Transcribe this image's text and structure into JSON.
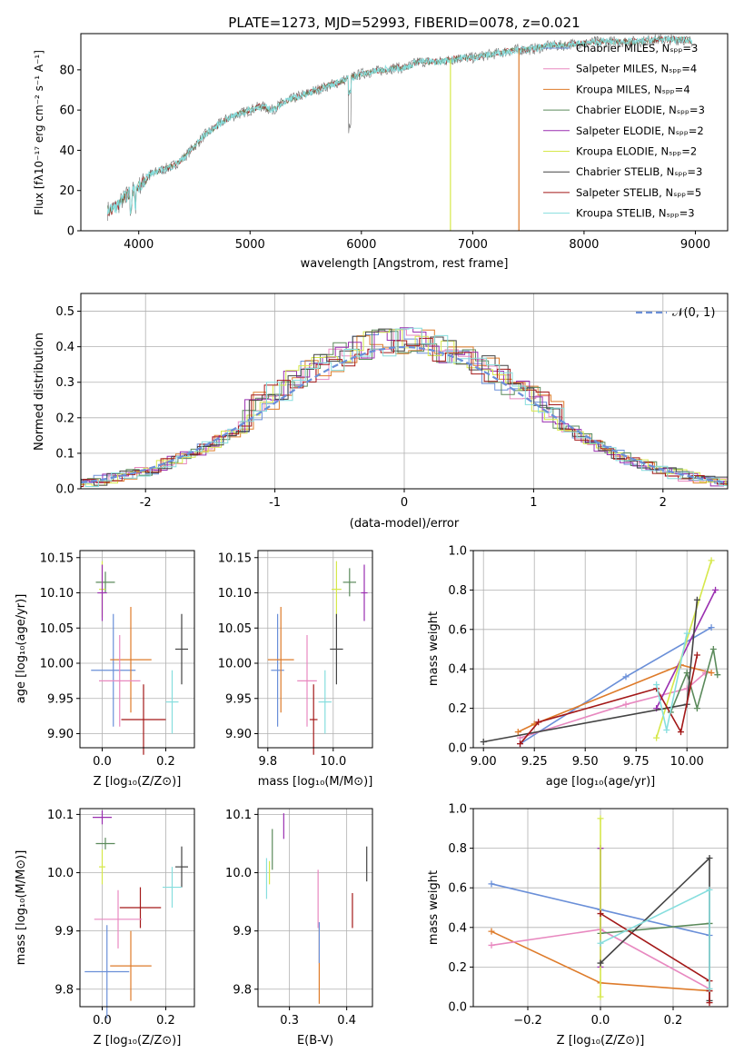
{
  "chart_data": [
    {
      "id": "spectrum",
      "type": "line",
      "title": "PLATE=1273, MJD=52993, FIBERID=0078, z=0.021",
      "xlabel": "wavelength [Angstrom, rest frame]",
      "ylabel": "Flux [fλ10⁻¹⁷ erg cm⁻² s⁻¹ A⁻¹]",
      "xlim": [
        3480,
        9290
      ],
      "ylim": [
        0,
        98
      ],
      "xticks": [
        4000,
        5000,
        6000,
        7000,
        8000,
        9000
      ],
      "yticks": [
        0,
        20,
        40,
        60,
        80
      ],
      "legend_position": "upper-right",
      "legend": [
        {
          "label": "Chabrier MILES, Nₛₚₚ=3",
          "color": "#6a8fd8"
        },
        {
          "label": "Salpeter MILES, Nₛₚₚ=4",
          "color": "#e889c0"
        },
        {
          "label": "Kroupa MILES, Nₛₚₚ=4",
          "color": "#de7b2a"
        },
        {
          "label": "Chabrier ELODIE, Nₛₚₚ=3",
          "color": "#5b8a5b"
        },
        {
          "label": "Salpeter ELODIE, Nₛₚₚ=2",
          "color": "#9a2fb0"
        },
        {
          "label": "Kroupa ELODIE, Nₛₚₚ=2",
          "color": "#d6e84a"
        },
        {
          "label": "Chabrier STELIB, Nₛₚₚ=3",
          "color": "#444444"
        },
        {
          "label": "Salpeter STELIB, Nₛₚₚ=5",
          "color": "#a31818"
        },
        {
          "label": "Kroupa STELIB, Nₛₚₚ=3",
          "color": "#86dede"
        }
      ],
      "spectrum_points": [
        [
          3720,
          10
        ],
        [
          3800,
          12
        ],
        [
          3900,
          18
        ],
        [
          4000,
          22
        ],
        [
          4100,
          28
        ],
        [
          4200,
          30
        ],
        [
          4300,
          32
        ],
        [
          4400,
          36
        ],
        [
          4500,
          42
        ],
        [
          4600,
          48
        ],
        [
          4700,
          52
        ],
        [
          4800,
          56
        ],
        [
          4900,
          58
        ],
        [
          5000,
          60
        ],
        [
          5100,
          62
        ],
        [
          5200,
          60
        ],
        [
          5300,
          64
        ],
        [
          5400,
          66
        ],
        [
          5500,
          68
        ],
        [
          5600,
          70
        ],
        [
          5700,
          72
        ],
        [
          5800,
          74
        ],
        [
          5900,
          76
        ],
        [
          6000,
          78
        ],
        [
          6100,
          79
        ],
        [
          6200,
          80
        ],
        [
          6300,
          81
        ],
        [
          6400,
          81
        ],
        [
          6500,
          84
        ],
        [
          6600,
          84
        ],
        [
          6700,
          84
        ],
        [
          6800,
          85
        ],
        [
          6900,
          86
        ],
        [
          7000,
          86
        ],
        [
          7100,
          87
        ],
        [
          7200,
          88
        ],
        [
          7300,
          89
        ],
        [
          7400,
          90
        ],
        [
          7500,
          90
        ],
        [
          7600,
          91
        ],
        [
          7700,
          92
        ],
        [
          7800,
          92
        ],
        [
          7900,
          93
        ],
        [
          8000,
          93
        ],
        [
          8100,
          94
        ],
        [
          8200,
          94
        ],
        [
          8300,
          94
        ],
        [
          8400,
          94
        ],
        [
          8500,
          94
        ],
        [
          8600,
          95
        ],
        [
          8700,
          95
        ],
        [
          8800,
          95
        ],
        [
          8900,
          95
        ],
        [
          8970,
          94
        ]
      ],
      "dropouts": [
        {
          "x": 6800,
          "color": "#d6e84a"
        },
        {
          "x": 7415,
          "color": "#de7b2a"
        }
      ]
    },
    {
      "id": "residuals",
      "type": "line",
      "xlabel": "(data-model)/error",
      "ylabel": "Normed distribution",
      "xlim": [
        -2.5,
        2.5
      ],
      "ylim": [
        0,
        0.55
      ],
      "xticks": [
        -2,
        -1,
        0,
        1,
        2
      ],
      "yticks": [
        0.0,
        0.1,
        0.2,
        0.3,
        0.4,
        0.5
      ],
      "grid": true,
      "legend_position": "upper-right",
      "legend": [
        {
          "label": "𝒩(0, 1)",
          "color": "#6a8fd8",
          "style": "dashed"
        }
      ],
      "normal": {
        "mean": 0,
        "sigma": 1
      },
      "hist_peak_x": 0.0,
      "hist_peak_y": 0.42
    },
    {
      "id": "age_vs_Z",
      "type": "scatter",
      "xlabel": "Z [log₁₀(Z/Z⊙)]",
      "ylabel": "age  [log₁₀(age/yr)]",
      "xlim": [
        -0.07,
        0.29
      ],
      "ylim": [
        9.88,
        10.16
      ],
      "xticks": [
        0.0,
        0.2
      ],
      "xtick_labels": [
        "0.0",
        "0.2"
      ],
      "yticks": [
        9.9,
        9.95,
        10.0,
        10.05,
        10.1,
        10.15
      ],
      "ytick_labels": [
        "9.90",
        "9.95",
        "10.00",
        "10.05",
        "10.10",
        "10.15"
      ],
      "grid": true,
      "points": [
        {
          "x": 0.01,
          "y": 10.115,
          "xerr": 0.03,
          "yerr": 0.015,
          "color": "#5b8a5b"
        },
        {
          "x": 0.0,
          "y": 10.105,
          "xerr": 0.01,
          "yerr": 0.04,
          "color": "#d6e84a"
        },
        {
          "x": 0.0,
          "y": 10.1,
          "xerr": 0.015,
          "yerr": 0.04,
          "color": "#9a2fb0"
        },
        {
          "x": 0.035,
          "y": 9.99,
          "xerr": 0.07,
          "yerr": 0.08,
          "color": "#6a8fd8"
        },
        {
          "x": 0.09,
          "y": 10.005,
          "xerr": 0.065,
          "yerr": 0.075,
          "color": "#de7b2a"
        },
        {
          "x": 0.055,
          "y": 9.975,
          "xerr": 0.065,
          "yerr": 0.065,
          "color": "#e889c0"
        },
        {
          "x": 0.13,
          "y": 9.92,
          "xerr": 0.07,
          "yerr": 0.05,
          "color": "#a31818"
        },
        {
          "x": 0.25,
          "y": 10.02,
          "xerr": 0.02,
          "yerr": 0.05,
          "color": "#444444"
        },
        {
          "x": 0.22,
          "y": 9.945,
          "xerr": 0.02,
          "yerr": 0.045,
          "color": "#86dede"
        }
      ]
    },
    {
      "id": "age_vs_mass",
      "type": "scatter",
      "xlabel": "mass [log₁₀(M/M⊙)]",
      "ylabel": "",
      "xlim": [
        9.77,
        10.12
      ],
      "ylim": [
        9.88,
        10.16
      ],
      "xticks": [
        9.8,
        10.0
      ],
      "xtick_labels": [
        "9.8",
        "10.0"
      ],
      "yticks": [
        9.9,
        9.95,
        10.0,
        10.05,
        10.1,
        10.15
      ],
      "ytick_labels": [
        "9.90",
        "9.95",
        "10.00",
        "10.05",
        "10.10",
        "10.15"
      ],
      "grid": true,
      "points": [
        {
          "x": 10.05,
          "y": 10.115,
          "xerr": 0.02,
          "yerr": 0.02,
          "color": "#5b8a5b"
        },
        {
          "x": 10.01,
          "y": 10.105,
          "xerr": 0.015,
          "yerr": 0.04,
          "color": "#d6e84a"
        },
        {
          "x": 10.095,
          "y": 10.1,
          "xerr": 0.01,
          "yerr": 0.04,
          "color": "#9a2fb0"
        },
        {
          "x": 9.83,
          "y": 9.99,
          "xerr": 0.02,
          "yerr": 0.08,
          "color": "#6a8fd8"
        },
        {
          "x": 9.84,
          "y": 10.005,
          "xerr": 0.04,
          "yerr": 0.075,
          "color": "#de7b2a"
        },
        {
          "x": 9.92,
          "y": 9.975,
          "xerr": 0.03,
          "yerr": 0.065,
          "color": "#e889c0"
        },
        {
          "x": 9.94,
          "y": 9.92,
          "xerr": 0.012,
          "yerr": 0.05,
          "color": "#a31818"
        },
        {
          "x": 10.01,
          "y": 10.02,
          "xerr": 0.02,
          "yerr": 0.05,
          "color": "#444444"
        },
        {
          "x": 9.975,
          "y": 9.945,
          "xerr": 0.02,
          "yerr": 0.045,
          "color": "#86dede"
        }
      ]
    },
    {
      "id": "mass_weight_vs_age",
      "type": "line",
      "xlabel": "age  [log₁₀(age/yr)]",
      "ylabel": "mass weight",
      "xlim": [
        8.95,
        10.2
      ],
      "ylim": [
        0.0,
        1.0
      ],
      "xticks": [
        9.0,
        9.25,
        9.5,
        9.75,
        10.0
      ],
      "xtick_labels": [
        "9.00",
        "9.25",
        "9.50",
        "9.75",
        "10.00"
      ],
      "yticks": [
        0.0,
        0.2,
        0.4,
        0.6,
        0.8,
        1.0
      ],
      "ytick_labels": [
        "0.0",
        "0.2",
        "0.4",
        "0.6",
        "0.8",
        "1.0"
      ],
      "grid": true,
      "series": [
        {
          "color": "#6a8fd8",
          "points": [
            [
              9.18,
              0.02
            ],
            [
              9.7,
              0.36
            ],
            [
              10.12,
              0.61
            ]
          ]
        },
        {
          "color": "#de7b2a",
          "points": [
            [
              9.17,
              0.08
            ],
            [
              9.25,
              0.12
            ],
            [
              9.97,
              0.42
            ],
            [
              10.12,
              0.38
            ]
          ]
        },
        {
          "color": "#e889c0",
          "points": [
            [
              9.18,
              0.05
            ],
            [
              9.7,
              0.22
            ],
            [
              10.0,
              0.3
            ],
            [
              10.09,
              0.38
            ]
          ]
        },
        {
          "color": "#5b8a5b",
          "points": [
            [
              9.92,
              0.18
            ],
            [
              10.0,
              0.38
            ],
            [
              10.05,
              0.2
            ],
            [
              10.13,
              0.5
            ],
            [
              10.15,
              0.37
            ]
          ]
        },
        {
          "color": "#9a2fb0",
          "points": [
            [
              9.85,
              0.2
            ],
            [
              10.14,
              0.8
            ]
          ]
        },
        {
          "color": "#d6e84a",
          "points": [
            [
              9.85,
              0.05
            ],
            [
              10.12,
              0.95
            ]
          ]
        },
        {
          "color": "#444444",
          "points": [
            [
              9.0,
              0.03
            ],
            [
              10.0,
              0.22
            ],
            [
              10.05,
              0.75
            ]
          ]
        },
        {
          "color": "#a31818",
          "points": [
            [
              9.18,
              0.02
            ],
            [
              9.27,
              0.13
            ],
            [
              9.85,
              0.3
            ],
            [
              9.97,
              0.08
            ],
            [
              10.05,
              0.47
            ]
          ]
        },
        {
          "color": "#86dede",
          "points": [
            [
              9.85,
              0.32
            ],
            [
              9.9,
              0.09
            ],
            [
              10.0,
              0.58
            ]
          ]
        }
      ]
    },
    {
      "id": "mass_vs_Z",
      "type": "scatter",
      "xlabel": "Z [log₁₀(Z/Z⊙)]",
      "ylabel": "mass [log₁₀(M/M⊙)]",
      "xlim": [
        -0.07,
        0.29
      ],
      "ylim": [
        9.77,
        10.11
      ],
      "xticks": [
        0.0,
        0.2
      ],
      "xtick_labels": [
        "0.0",
        "0.2"
      ],
      "yticks": [
        9.8,
        9.9,
        10.0,
        10.1
      ],
      "ytick_labels": [
        "9.8",
        "9.9",
        "10.0",
        "10.1"
      ],
      "grid": true,
      "points": [
        {
          "x": 0.0,
          "y": 10.095,
          "xerr": 0.03,
          "yerr": 0.012,
          "color": "#9a2fb0"
        },
        {
          "x": 0.01,
          "y": 10.05,
          "xerr": 0.03,
          "yerr": 0.01,
          "color": "#5b8a5b"
        },
        {
          "x": 0.0,
          "y": 10.01,
          "xerr": 0.01,
          "yerr": 0.03,
          "color": "#d6e84a"
        },
        {
          "x": 0.25,
          "y": 10.01,
          "xerr": 0.02,
          "yerr": 0.035,
          "color": "#444444"
        },
        {
          "x": 0.22,
          "y": 9.975,
          "xerr": 0.03,
          "yerr": 0.035,
          "color": "#86dede"
        },
        {
          "x": 0.12,
          "y": 9.94,
          "xerr": 0.065,
          "yerr": 0.035,
          "color": "#a31818"
        },
        {
          "x": 0.05,
          "y": 9.92,
          "xerr": 0.075,
          "yerr": 0.05,
          "color": "#e889c0"
        },
        {
          "x": 0.09,
          "y": 9.84,
          "xerr": 0.065,
          "yerr": 0.06,
          "color": "#de7b2a"
        },
        {
          "x": 0.015,
          "y": 9.83,
          "xerr": 0.07,
          "yerr": 0.08,
          "color": "#6a8fd8"
        }
      ]
    },
    {
      "id": "mass_vs_ebv",
      "type": "scatter",
      "xlabel": "E(B-V)",
      "ylabel": "",
      "xlim": [
        0.245,
        0.445
      ],
      "ylim": [
        9.77,
        10.11
      ],
      "xticks": [
        0.3,
        0.4
      ],
      "xtick_labels": [
        "0.3",
        "0.4"
      ],
      "yticks": [
        9.8,
        9.9,
        10.0,
        10.1
      ],
      "ytick_labels": [
        "9.8",
        "9.9",
        "10.0",
        "10.1"
      ],
      "grid": true,
      "points": [
        {
          "x": 0.29,
          "y": 10.08,
          "xerr": 0.0,
          "yerr": 0.022,
          "color": "#9a2fb0"
        },
        {
          "x": 0.27,
          "y": 10.04,
          "xerr": 0.0,
          "yerr": 0.035,
          "color": "#5b8a5b"
        },
        {
          "x": 0.265,
          "y": 10.0,
          "xerr": 0.0,
          "yerr": 0.02,
          "color": "#d6e84a"
        },
        {
          "x": 0.26,
          "y": 9.99,
          "xerr": 0.0,
          "yerr": 0.035,
          "color": "#86dede"
        },
        {
          "x": 0.35,
          "y": 9.955,
          "xerr": 0.0,
          "yerr": 0.05,
          "color": "#e889c0"
        },
        {
          "x": 0.352,
          "y": 9.84,
          "xerr": 0.0,
          "yerr": 0.065,
          "color": "#de7b2a"
        },
        {
          "x": 0.352,
          "y": 9.88,
          "xerr": 0.0,
          "yerr": 0.035,
          "color": "#6a8fd8"
        },
        {
          "x": 0.41,
          "y": 9.935,
          "xerr": 0.0,
          "yerr": 0.03,
          "color": "#a31818"
        },
        {
          "x": 0.435,
          "y": 10.015,
          "xerr": 0.0,
          "yerr": 0.03,
          "color": "#444444"
        }
      ]
    },
    {
      "id": "mass_weight_vs_Z",
      "type": "line",
      "xlabel": "Z [log₁₀(Z/Z⊙)]",
      "ylabel": "mass weight",
      "xlim": [
        -0.35,
        0.35
      ],
      "ylim": [
        0.0,
        1.0
      ],
      "xticks": [
        -0.2,
        0.0,
        0.2
      ],
      "xtick_labels": [
        "−0.2",
        "0.0",
        "0.2"
      ],
      "yticks": [
        0.0,
        0.2,
        0.4,
        0.6,
        0.8,
        1.0
      ],
      "ytick_labels": [
        "0.0",
        "0.2",
        "0.4",
        "0.6",
        "0.8",
        "1.0"
      ],
      "grid": true,
      "series": [
        {
          "color": "#6a8fd8",
          "points": [
            [
              -0.3,
              0.62
            ],
            [
              0.0,
              0.49
            ],
            [
              0.3,
              0.36
            ]
          ]
        },
        {
          "color": "#de7b2a",
          "points": [
            [
              -0.3,
              0.38
            ],
            [
              0.0,
              0.12
            ],
            [
              0.3,
              0.08
            ]
          ]
        },
        {
          "color": "#e889c0",
          "points": [
            [
              -0.3,
              0.31
            ],
            [
              0.0,
              0.39
            ],
            [
              0.3,
              0.09
            ]
          ]
        },
        {
          "color": "#5b8a5b",
          "points": [
            [
              0.0,
              0.8
            ],
            [
              0.0,
              0.37
            ],
            [
              0.3,
              0.42
            ]
          ]
        },
        {
          "color": "#9a2fb0",
          "points": [
            [
              0.0,
              0.2
            ],
            [
              0.0,
              0.8
            ]
          ]
        },
        {
          "color": "#d6e84a",
          "points": [
            [
              0.0,
              0.05
            ],
            [
              0.0,
              0.95
            ]
          ]
        },
        {
          "color": "#444444",
          "points": [
            [
              0.0,
              0.22
            ],
            [
              0.3,
              0.75
            ],
            [
              0.3,
              0.03
            ]
          ]
        },
        {
          "color": "#a31818",
          "points": [
            [
              0.0,
              0.47
            ],
            [
              0.3,
              0.13
            ],
            [
              0.3,
              0.02
            ],
            [
              0.3,
              0.08
            ]
          ]
        },
        {
          "color": "#86dede",
          "points": [
            [
              0.0,
              0.32
            ],
            [
              0.3,
              0.59
            ],
            [
              0.3,
              0.09
            ]
          ]
        }
      ]
    }
  ]
}
